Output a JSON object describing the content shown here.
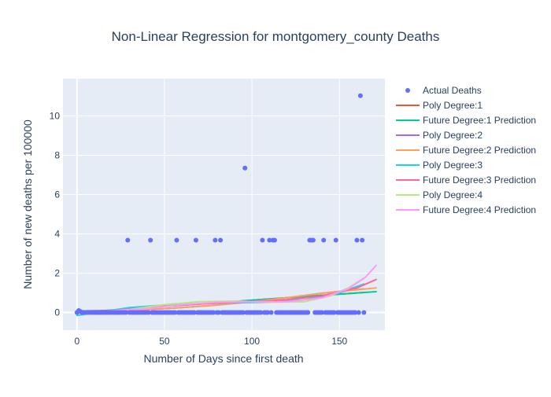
{
  "chart_data": {
    "type": "scatter",
    "title": "Non-Linear Regression for montgomery_county Deaths",
    "xlabel": "Number of Days since first death",
    "ylabel": "Number of new deaths per 100000",
    "xlim": [
      -8,
      176
    ],
    "ylim": [
      -0.9,
      11.9
    ],
    "xticks": [
      0,
      50,
      100,
      150
    ],
    "yticks": [
      0,
      2,
      4,
      6,
      8,
      10
    ],
    "grid": true,
    "legend_position": "right",
    "colors": {
      "background": "#e5ecf6",
      "actual": "#636efa",
      "poly1": "#ef553b",
      "future1": "#00cc96",
      "poly2": "#ab63fa",
      "future2": "#ffa15a",
      "poly3": "#19d3f3",
      "future3": "#ff6692",
      "poly4": "#b6e880",
      "future4": "#ff97ff"
    },
    "series": [
      {
        "name": "Actual Deaths",
        "mode": "markers",
        "color": "#636efa",
        "x": [
          1,
          2,
          29,
          42,
          57,
          68,
          79,
          82,
          96,
          106,
          110,
          112,
          113,
          133,
          134,
          135,
          141,
          148,
          160,
          162,
          163
        ],
        "y": [
          0.1,
          0.05,
          3.68,
          3.68,
          3.68,
          3.68,
          3.68,
          3.68,
          7.35,
          3.68,
          3.68,
          3.68,
          3.68,
          3.68,
          3.68,
          3.68,
          3.68,
          3.68,
          3.68,
          11.03,
          3.68
        ],
        "zeros_from": 0,
        "zeros_to": 164
      },
      {
        "name": "Poly Degree:1",
        "mode": "lines",
        "color": "#ef553b",
        "x": [
          0,
          40,
          80,
          120,
          164
        ],
        "y": [
          0.0,
          0.25,
          0.5,
          0.75,
          1.02
        ]
      },
      {
        "name": "Future Degree:1 Prediction",
        "mode": "lines",
        "color": "#00cc96",
        "x": [
          0,
          40,
          80,
          120,
          171
        ],
        "y": [
          0.0,
          0.25,
          0.5,
          0.75,
          1.06
        ]
      },
      {
        "name": "Poly Degree:2",
        "mode": "lines",
        "color": "#ab63fa",
        "x": [
          0,
          20,
          40,
          60,
          80,
          100,
          120,
          140,
          164
        ],
        "y": [
          0.08,
          0.1,
          0.15,
          0.25,
          0.38,
          0.55,
          0.75,
          0.98,
          1.2
        ]
      },
      {
        "name": "Future Degree:2 Prediction",
        "mode": "lines",
        "color": "#ffa15a",
        "x": [
          0,
          20,
          40,
          60,
          80,
          100,
          120,
          140,
          171
        ],
        "y": [
          0.05,
          0.09,
          0.15,
          0.25,
          0.38,
          0.55,
          0.75,
          0.98,
          1.25
        ]
      },
      {
        "name": "Poly Degree:3",
        "mode": "lines",
        "color": "#19d3f3",
        "x": [
          0,
          15,
          30,
          50,
          70,
          90,
          110,
          130,
          150,
          164
        ],
        "y": [
          -0.15,
          0.05,
          0.25,
          0.38,
          0.45,
          0.5,
          0.52,
          0.65,
          1.0,
          1.45
        ]
      },
      {
        "name": "Future Degree:3 Prediction",
        "mode": "lines",
        "color": "#ff6692",
        "x": [
          0,
          20,
          40,
          60,
          80,
          100,
          120,
          140,
          160,
          171
        ],
        "y": [
          0.0,
          0.1,
          0.25,
          0.38,
          0.48,
          0.55,
          0.65,
          0.85,
          1.25,
          1.68
        ]
      },
      {
        "name": "Poly Degree:4",
        "mode": "lines",
        "color": "#b6e880",
        "x": [
          0,
          15,
          30,
          50,
          70,
          90,
          110,
          130,
          145,
          155,
          164
        ],
        "y": [
          0.1,
          0.05,
          0.15,
          0.4,
          0.55,
          0.58,
          0.52,
          0.55,
          0.85,
          1.25,
          1.75
        ]
      },
      {
        "name": "Future Degree:4 Prediction",
        "mode": "lines",
        "color": "#ff97ff",
        "x": [
          0,
          20,
          40,
          60,
          80,
          100,
          120,
          140,
          155,
          165,
          171
        ],
        "y": [
          0.05,
          0.08,
          0.2,
          0.4,
          0.52,
          0.55,
          0.55,
          0.75,
          1.2,
          1.8,
          2.4
        ]
      }
    ]
  }
}
